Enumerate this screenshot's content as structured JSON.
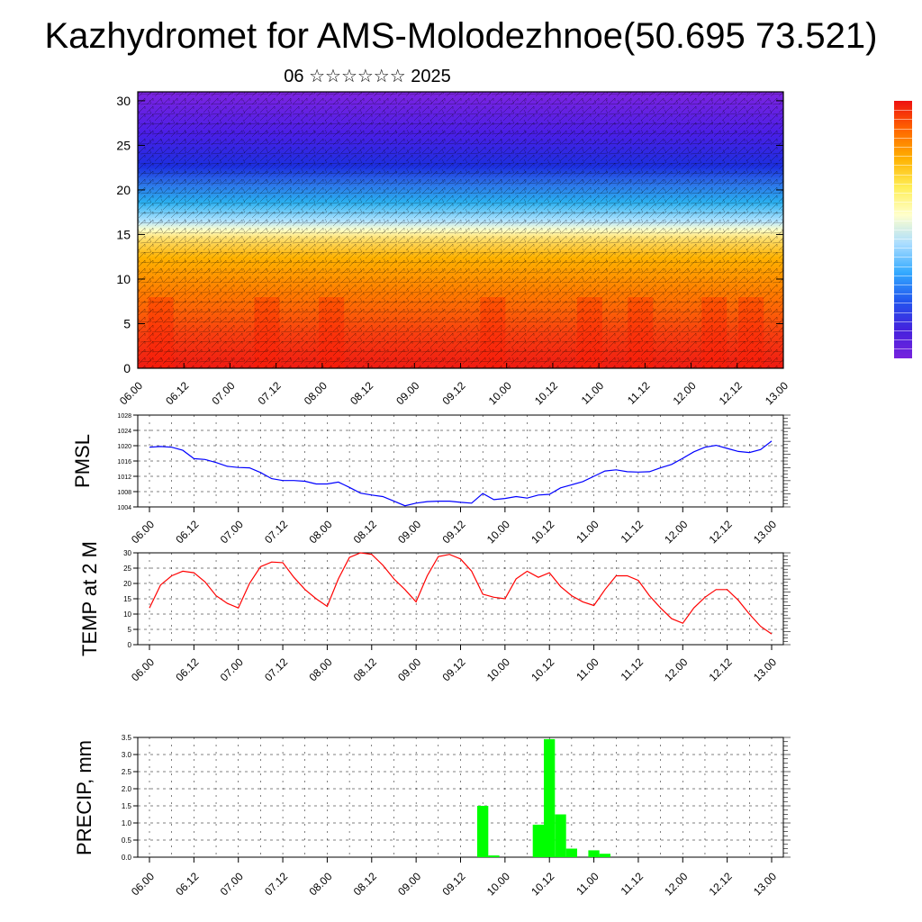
{
  "header": {
    "title": "Kazhydromet for AMS-Molodezhnoe(50.695 73.521)",
    "subtitle": "06 ☆☆☆☆☆☆ 2025"
  },
  "time_ticks": [
    "06.00",
    "06.12",
    "07.00",
    "07.12",
    "08.00",
    "08.12",
    "09.00",
    "09.12",
    "10.00",
    "10.12",
    "11.00",
    "11.12",
    "12.00",
    "12.12",
    "13.00"
  ],
  "colors": {
    "pmsl_line": "#0000ff",
    "temp_line": "#ff0000",
    "precip_bar": "#00ff00",
    "colorbar_stops": [
      "#ee1111",
      "#ff6600",
      "#ffb000",
      "#ffee55",
      "#ffffcc",
      "#aaddff",
      "#33aaff",
      "#2255ee",
      "#4422dd",
      "#7722dd"
    ]
  },
  "chart_data": [
    {
      "id": "cross-section",
      "type": "heatmap",
      "ytick_labels": [
        "0",
        "5",
        "10",
        "15",
        "20",
        "25",
        "30"
      ],
      "ylim": [
        0,
        31
      ],
      "xlim": [
        0,
        14
      ],
      "grid": false,
      "note_values": "vertical temperature cross-section with wind barbs; warm near surface, cold aloft, transition near level 15-16"
    },
    {
      "id": "pmsl",
      "type": "line",
      "ylabel": "PMSL",
      "ylim": [
        1004,
        1028
      ],
      "ytick_labels": [
        "1004",
        "1008",
        "1012",
        "1016",
        "1020",
        "1024",
        "1028"
      ],
      "xlim": [
        0,
        14
      ],
      "grid": true,
      "x": [
        0,
        0.25,
        0.5,
        0.75,
        1,
        1.25,
        1.5,
        1.75,
        2,
        2.25,
        2.5,
        2.75,
        3,
        3.25,
        3.5,
        3.75,
        4,
        4.25,
        4.5,
        4.75,
        5,
        5.25,
        5.5,
        5.75,
        6,
        6.25,
        6.5,
        6.75,
        7,
        7.25,
        7.5,
        7.75,
        8,
        8.25,
        8.5,
        8.75,
        9,
        9.25,
        9.5,
        9.75,
        10,
        10.25,
        10.5,
        10.75,
        11,
        11.25,
        11.5,
        11.75,
        12,
        12.25,
        12.5,
        12.75,
        13,
        13.25,
        13.5,
        13.75,
        14
      ],
      "values": [
        1019.6,
        1019.8,
        1019.6,
        1018.8,
        1016.6,
        1016.4,
        1015.6,
        1014.6,
        1014.3,
        1014.2,
        1013.0,
        1011.4,
        1010.9,
        1010.9,
        1010.7,
        1010.0,
        1010.0,
        1010.5,
        1009.1,
        1007.6,
        1007.1,
        1006.7,
        1005.5,
        1004.3,
        1005.0,
        1005.4,
        1005.5,
        1005.5,
        1005.2,
        1005.0,
        1007.5,
        1005.9,
        1006.2,
        1006.7,
        1006.3,
        1007.1,
        1007.3,
        1009.0,
        1009.8,
        1010.6,
        1012.0,
        1013.4,
        1013.7,
        1013.2,
        1013.1,
        1013.2,
        1014.2,
        1015.1,
        1016.7,
        1018.4,
        1019.6,
        1020.1,
        1019.3,
        1018.5,
        1018.2,
        1019.0,
        1021.2
      ]
    },
    {
      "id": "temp2m",
      "type": "line",
      "ylabel": "TEMP at 2 M",
      "ylim": [
        0,
        30
      ],
      "ytick_labels": [
        "0",
        "5",
        "10",
        "15",
        "20",
        "25",
        "30"
      ],
      "xlim": [
        0,
        14
      ],
      "grid": true,
      "x": [
        0,
        0.25,
        0.5,
        0.75,
        1,
        1.25,
        1.5,
        1.75,
        2,
        2.25,
        2.5,
        2.75,
        3,
        3.25,
        3.5,
        3.75,
        4,
        4.25,
        4.5,
        4.75,
        5,
        5.25,
        5.5,
        5.75,
        6,
        6.25,
        6.5,
        6.75,
        7,
        7.25,
        7.5,
        7.75,
        8,
        8.25,
        8.5,
        8.75,
        9,
        9.25,
        9.5,
        9.75,
        10,
        10.25,
        10.5,
        10.75,
        11,
        11.25,
        11.5,
        11.75,
        12,
        12.25,
        12.5,
        12.75,
        13,
        13.25,
        13.5,
        13.75,
        14
      ],
      "values": [
        12,
        19.5,
        22.5,
        24,
        23.5,
        20.5,
        16,
        13.5,
        12,
        20,
        25.5,
        27,
        26.8,
        22,
        18,
        15,
        12.5,
        21.5,
        28.5,
        30,
        29.5,
        26,
        21.5,
        18,
        14,
        22.5,
        28.8,
        29.5,
        28,
        24,
        16.5,
        15.5,
        15,
        21.5,
        24,
        22,
        23.5,
        19,
        16,
        14,
        12.8,
        18,
        22.5,
        22.5,
        21,
        16,
        12,
        8.5,
        7,
        12,
        15.5,
        18,
        18,
        14.5,
        10,
        6,
        3.5
      ]
    },
    {
      "id": "precip",
      "type": "bar",
      "ylabel": "PRECIP, mm",
      "ylim": [
        0,
        3.5
      ],
      "ytick_labels": [
        "0.0",
        "0.5",
        "1.0",
        "1.5",
        "2.0",
        "2.5",
        "3.0",
        "3.5"
      ],
      "xlim": [
        0,
        14
      ],
      "grid": true,
      "x": [
        7.5,
        7.75,
        8.0,
        8.25,
        8.5,
        8.75,
        9.0,
        9.25,
        9.5,
        9.75,
        10.0,
        10.25,
        10.5,
        10.75,
        11.0,
        11.25
      ],
      "values": [
        1.5,
        0.05,
        0.0,
        0.0,
        0.0,
        0.95,
        3.45,
        1.25,
        0.25,
        0.0,
        0.2,
        0.1,
        0.0,
        0.0,
        0.0,
        0.0
      ]
    }
  ]
}
